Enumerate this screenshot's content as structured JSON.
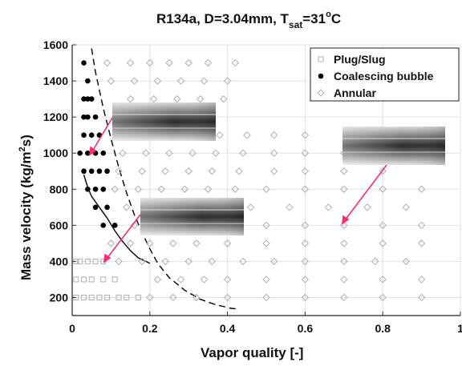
{
  "chart_data": {
    "type": "scatter",
    "title": {
      "main": "R134a, D=3.04mm, T",
      "sub": "sat",
      "tail": "=31",
      "deg": "o",
      "unit": "C"
    },
    "xlabel": "Vapor quality [-]",
    "ylabel": {
      "main": "Mass velocity (kg/m",
      "sup": "2",
      "tail": "s)"
    },
    "xlim": [
      0,
      1
    ],
    "ylim": [
      100,
      1600
    ],
    "x_ticks": [
      "0",
      "0.2",
      "0.4",
      "0.6",
      "0.8",
      "1"
    ],
    "y_ticks": [
      "200",
      "400",
      "600",
      "800",
      "1000",
      "1200",
      "1400",
      "1600"
    ],
    "grid": true,
    "legend_position": "top-right",
    "series": [
      {
        "name": "Plug/Slug",
        "marker": "square",
        "color": "#b0b0b0",
        "points": [
          [
            0.01,
            200
          ],
          [
            0.03,
            200
          ],
          [
            0.05,
            200
          ],
          [
            0.07,
            200
          ],
          [
            0.09,
            200
          ],
          [
            0.12,
            200
          ],
          [
            0.14,
            200
          ],
          [
            0.17,
            200
          ],
          [
            0.01,
            300
          ],
          [
            0.03,
            300
          ],
          [
            0.05,
            300
          ],
          [
            0.08,
            300
          ],
          [
            0.11,
            300
          ],
          [
            0.01,
            400
          ],
          [
            0.02,
            400
          ],
          [
            0.04,
            400
          ],
          [
            0.06,
            400
          ],
          [
            0.08,
            400
          ]
        ]
      },
      {
        "name": "Coalescing bubble",
        "marker": "filled-circle",
        "color": "#000000",
        "points": [
          [
            0.03,
            1500
          ],
          [
            0.04,
            1400
          ],
          [
            0.03,
            1300
          ],
          [
            0.04,
            1300
          ],
          [
            0.05,
            1300
          ],
          [
            0.03,
            1200
          ],
          [
            0.04,
            1200
          ],
          [
            0.06,
            1200
          ],
          [
            0.03,
            1100
          ],
          [
            0.05,
            1100
          ],
          [
            0.07,
            1100
          ],
          [
            0.02,
            1000
          ],
          [
            0.04,
            1000
          ],
          [
            0.06,
            1000
          ],
          [
            0.08,
            1000
          ],
          [
            0.03,
            900
          ],
          [
            0.05,
            900
          ],
          [
            0.07,
            900
          ],
          [
            0.09,
            900
          ],
          [
            0.04,
            800
          ],
          [
            0.06,
            800
          ],
          [
            0.08,
            800
          ],
          [
            0.06,
            700
          ],
          [
            0.09,
            700
          ],
          [
            0.08,
            600
          ],
          [
            0.11,
            600
          ]
        ]
      },
      {
        "name": "Annular",
        "marker": "open-diamond",
        "color": "#b0b0b0",
        "points": [
          [
            0.09,
            1500
          ],
          [
            0.15,
            1500
          ],
          [
            0.2,
            1500
          ],
          [
            0.25,
            1500
          ],
          [
            0.3,
            1500
          ],
          [
            0.35,
            1500
          ],
          [
            0.42,
            1500
          ],
          [
            0.1,
            1400
          ],
          [
            0.16,
            1400
          ],
          [
            0.22,
            1400
          ],
          [
            0.28,
            1400
          ],
          [
            0.34,
            1400
          ],
          [
            0.4,
            1400
          ],
          [
            0.15,
            1300
          ],
          [
            0.21,
            1300
          ],
          [
            0.27,
            1300
          ],
          [
            0.33,
            1300
          ],
          [
            0.39,
            1300
          ],
          [
            0.12,
            1200
          ],
          [
            0.18,
            1200
          ],
          [
            0.24,
            1200
          ],
          [
            0.3,
            1200
          ],
          [
            0.36,
            1200
          ],
          [
            0.14,
            1100
          ],
          [
            0.2,
            1100
          ],
          [
            0.26,
            1100
          ],
          [
            0.32,
            1100
          ],
          [
            0.38,
            1100
          ],
          [
            0.45,
            1100
          ],
          [
            0.52,
            1100
          ],
          [
            0.6,
            1100
          ],
          [
            0.13,
            1000
          ],
          [
            0.19,
            1000
          ],
          [
            0.25,
            1000
          ],
          [
            0.31,
            1000
          ],
          [
            0.37,
            1000
          ],
          [
            0.44,
            1000
          ],
          [
            0.52,
            1000
          ],
          [
            0.6,
            1000
          ],
          [
            0.7,
            1000
          ],
          [
            0.12,
            900
          ],
          [
            0.18,
            900
          ],
          [
            0.24,
            900
          ],
          [
            0.3,
            900
          ],
          [
            0.36,
            900
          ],
          [
            0.43,
            900
          ],
          [
            0.52,
            900
          ],
          [
            0.6,
            900
          ],
          [
            0.7,
            900
          ],
          [
            0.8,
            900
          ],
          [
            0.11,
            800
          ],
          [
            0.17,
            800
          ],
          [
            0.23,
            800
          ],
          [
            0.29,
            800
          ],
          [
            0.35,
            800
          ],
          [
            0.42,
            800
          ],
          [
            0.5,
            800
          ],
          [
            0.6,
            800
          ],
          [
            0.7,
            800
          ],
          [
            0.8,
            800
          ],
          [
            0.9,
            800
          ],
          [
            0.14,
            700
          ],
          [
            0.2,
            700
          ],
          [
            0.26,
            700
          ],
          [
            0.32,
            700
          ],
          [
            0.38,
            700
          ],
          [
            0.46,
            700
          ],
          [
            0.56,
            700
          ],
          [
            0.66,
            700
          ],
          [
            0.76,
            700
          ],
          [
            0.86,
            700
          ],
          [
            0.16,
            600
          ],
          [
            0.22,
            600
          ],
          [
            0.28,
            600
          ],
          [
            0.34,
            600
          ],
          [
            0.42,
            600
          ],
          [
            0.5,
            600
          ],
          [
            0.6,
            600
          ],
          [
            0.7,
            600
          ],
          [
            0.8,
            600
          ],
          [
            0.9,
            600
          ],
          [
            0.1,
            500
          ],
          [
            0.15,
            500
          ],
          [
            0.2,
            500
          ],
          [
            0.26,
            500
          ],
          [
            0.32,
            500
          ],
          [
            0.4,
            500
          ],
          [
            0.5,
            500
          ],
          [
            0.6,
            500
          ],
          [
            0.7,
            500
          ],
          [
            0.8,
            500
          ],
          [
            0.9,
            500
          ],
          [
            0.12,
            400
          ],
          [
            0.18,
            400
          ],
          [
            0.24,
            400
          ],
          [
            0.3,
            400
          ],
          [
            0.36,
            400
          ],
          [
            0.44,
            400
          ],
          [
            0.52,
            400
          ],
          [
            0.6,
            400
          ],
          [
            0.7,
            400
          ],
          [
            0.78,
            400
          ],
          [
            0.86,
            400
          ],
          [
            0.22,
            300
          ],
          [
            0.28,
            300
          ],
          [
            0.34,
            300
          ],
          [
            0.4,
            300
          ],
          [
            0.5,
            300
          ],
          [
            0.6,
            300
          ],
          [
            0.7,
            300
          ],
          [
            0.8,
            300
          ],
          [
            0.9,
            300
          ],
          [
            0.2,
            200
          ],
          [
            0.26,
            200
          ],
          [
            0.32,
            200
          ],
          [
            0.4,
            200
          ],
          [
            0.5,
            200
          ],
          [
            0.6,
            200
          ],
          [
            0.7,
            200
          ],
          [
            0.8,
            200
          ],
          [
            0.9,
            200
          ]
        ]
      }
    ],
    "curves": [
      {
        "style": "dashed",
        "points": [
          [
            0.05,
            1580
          ],
          [
            0.06,
            1450
          ],
          [
            0.08,
            1250
          ],
          [
            0.1,
            1080
          ],
          [
            0.12,
            920
          ],
          [
            0.14,
            780
          ],
          [
            0.16,
            660
          ],
          [
            0.18,
            560
          ],
          [
            0.2,
            470
          ],
          [
            0.22,
            390
          ],
          [
            0.25,
            310
          ],
          [
            0.29,
            240
          ],
          [
            0.33,
            190
          ],
          [
            0.37,
            160
          ],
          [
            0.41,
            140
          ],
          [
            0.43,
            135
          ]
        ]
      },
      {
        "style": "solid",
        "points": [
          [
            0.03,
            880
          ],
          [
            0.04,
            810
          ],
          [
            0.05,
            760
          ],
          [
            0.07,
            700
          ],
          [
            0.09,
            640
          ],
          [
            0.11,
            570
          ],
          [
            0.13,
            510
          ],
          [
            0.15,
            460
          ],
          [
            0.17,
            420
          ],
          [
            0.2,
            390
          ]
        ]
      }
    ]
  }
}
